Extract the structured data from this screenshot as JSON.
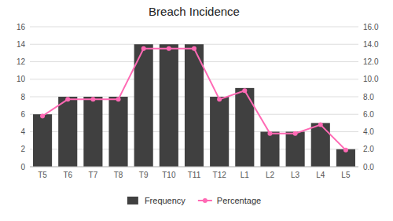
{
  "chart_data": {
    "type": "bar",
    "title": "Breach Incidence",
    "categories": [
      "T5",
      "T6",
      "T7",
      "T8",
      "T9",
      "T10",
      "T11",
      "T12",
      "L1",
      "L2",
      "L3",
      "L4",
      "L5"
    ],
    "series": [
      {
        "name": "Frequency",
        "type": "bar",
        "color": "#404040",
        "values": [
          6,
          8,
          8,
          8,
          14,
          14,
          14,
          8,
          9,
          4,
          4,
          5,
          2
        ]
      },
      {
        "name": "Percentage",
        "type": "line",
        "color": "#FF69B4",
        "marker": "circle",
        "axis": "y2",
        "values": [
          5.8,
          7.7,
          7.7,
          7.7,
          13.5,
          13.5,
          13.5,
          7.7,
          8.7,
          3.8,
          3.8,
          4.8,
          1.9
        ]
      }
    ],
    "ylim": [
      0,
      16
    ],
    "yticks": [
      0,
      2,
      4,
      6,
      8,
      10,
      12,
      14,
      16
    ],
    "y2lim": [
      0,
      16
    ],
    "y2ticks": [
      {
        "value": 0,
        "label": "0.0"
      },
      {
        "value": 2,
        "label": "2.0"
      },
      {
        "value": 4,
        "label": "4.0"
      },
      {
        "value": 6,
        "label": "6.0"
      },
      {
        "value": 8,
        "label": "8.0"
      },
      {
        "value": 10,
        "label": "10.0"
      },
      {
        "value": 12,
        "label": "12.0"
      },
      {
        "value": 14,
        "label": "14.0"
      },
      {
        "value": 16,
        "label": "16.0"
      }
    ],
    "grid": true,
    "legend": "bottom"
  }
}
